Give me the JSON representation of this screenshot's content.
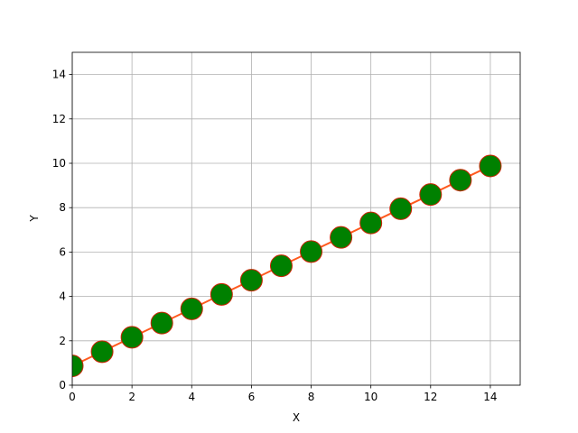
{
  "chart_data": {
    "type": "line",
    "title": "",
    "xlabel": "X",
    "ylabel": "Y",
    "xlim": [
      0,
      15
    ],
    "ylim": [
      0,
      15
    ],
    "x_ticks": [
      0,
      2,
      4,
      6,
      8,
      10,
      12,
      14
    ],
    "y_ticks": [
      0,
      2,
      4,
      6,
      8,
      10,
      12,
      14
    ],
    "grid": true,
    "series": [
      {
        "x": [
          0,
          1,
          2,
          3,
          4,
          5,
          6,
          7,
          8,
          9,
          10,
          11,
          12,
          13,
          14
        ],
        "y": [
          0.87,
          1.51,
          2.16,
          2.8,
          3.44,
          4.09,
          4.73,
          5.38,
          6.02,
          6.66,
          7.31,
          7.95,
          8.59,
          9.24,
          9.88
        ],
        "line_color": "#ff5a1f",
        "marker": "circle",
        "marker_fill": "#008000",
        "marker_edge": "#cc2200"
      }
    ]
  }
}
